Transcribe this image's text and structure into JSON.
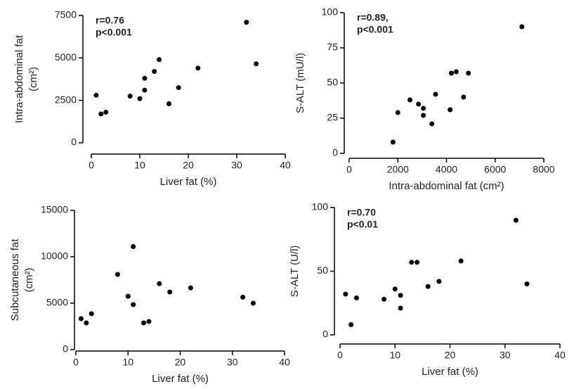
{
  "chart_data": [
    {
      "type": "scatter",
      "ylabel": [
        "Intra-abdominal fat",
        "(cm²)"
      ],
      "xlabel": "Liver fat (%)",
      "annotation": [
        "r=0.76",
        "p<0.001"
      ],
      "color": "#000000",
      "x": [
        1,
        2,
        3,
        8,
        10,
        11,
        11,
        13,
        14,
        16,
        18,
        22,
        32,
        34
      ],
      "values": [
        2800,
        1700,
        1800,
        2750,
        2600,
        3800,
        3100,
        4200,
        4900,
        2300,
        3250,
        4400,
        7100,
        4650
      ],
      "xlim": [
        0,
        40
      ],
      "xticks": [
        0,
        10,
        20,
        30,
        40
      ],
      "ylim": [
        0,
        7500
      ],
      "yticks": [
        0,
        2500,
        5000,
        7500
      ]
    },
    {
      "type": "scatter",
      "ylabel": [
        "S-ALT (mU/l)"
      ],
      "xlabel": "Intra-abdominal fat (cm²)",
      "annotation": [
        "r=0.89,",
        "p<0.001"
      ],
      "color": "#000000",
      "x": [
        1800,
        2000,
        2500,
        2850,
        3050,
        3050,
        3400,
        3550,
        4150,
        4200,
        4400,
        4700,
        4900,
        7100
      ],
      "values": [
        8,
        29,
        38,
        35,
        32,
        27,
        21,
        42,
        31,
        57,
        58,
        40,
        57,
        90
      ],
      "xlim": [
        0,
        8000
      ],
      "xticks": [
        0,
        2000,
        4000,
        6000,
        8000
      ],
      "ylim": [
        0,
        100
      ],
      "yticks": [
        0,
        25,
        50,
        75,
        100
      ]
    },
    {
      "type": "scatter",
      "ylabel": [
        "Subcutaneous fat",
        "(cm²)"
      ],
      "xlabel": "Liver fat (%)",
      "color": "#000000",
      "x": [
        1,
        2,
        3,
        8,
        10,
        11,
        11,
        13,
        14,
        16,
        18,
        22,
        32,
        34
      ],
      "values": [
        3330,
        2880,
        3860,
        8100,
        5750,
        11100,
        4850,
        2880,
        3030,
        7100,
        6200,
        6650,
        5650,
        5000
      ],
      "xlim": [
        0,
        40
      ],
      "xticks": [
        0,
        10,
        20,
        30,
        40
      ],
      "ylim": [
        0,
        15000
      ],
      "yticks": [
        0,
        5000,
        10000,
        15000
      ]
    },
    {
      "type": "scatter",
      "ylabel": [
        "S-ALT (U/l)"
      ],
      "xlabel": "Liver fat (%)",
      "annotation": [
        "r=0.70",
        "p<0.01"
      ],
      "color": "#000000",
      "x": [
        1,
        2,
        3,
        8,
        10,
        11,
        11,
        13,
        14,
        16,
        18,
        22,
        32,
        34
      ],
      "values": [
        32,
        8,
        29,
        28,
        36,
        31,
        21,
        57,
        57,
        38,
        42,
        58,
        90,
        40
      ],
      "xlim": [
        0,
        40
      ],
      "xticks": [
        0,
        10,
        20,
        30,
        40
      ],
      "ylim": [
        0,
        100
      ],
      "yticks": [
        0,
        50,
        100
      ]
    }
  ]
}
